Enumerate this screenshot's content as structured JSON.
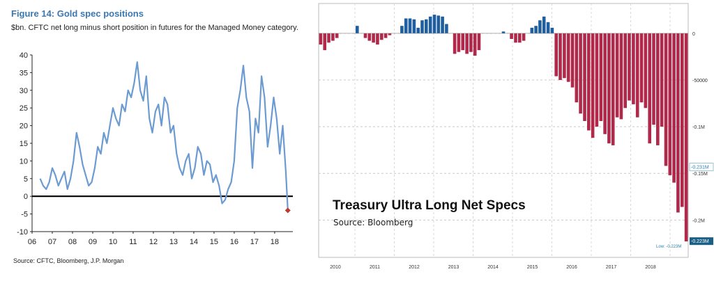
{
  "left_figure": {
    "title": "Figure 14: Gold spec positions",
    "subtitle": "$bn. CFTC net long minus short position in futures for the Managed Money category.",
    "source": "Source: CFTC, Bloomberg, J.P. Morgan"
  },
  "right_figure": {
    "title": "Treasury Ultra Long Net Specs",
    "source": "Source: Bloomberg"
  },
  "colors": {
    "line": "#6b9bd1",
    "line_end_marker": "#c0392b",
    "positive_bar": "#1f5fa0",
    "negative_bar": "#b0284a",
    "title_blue": "#3a78b4",
    "highlight_label": "#2a7fa8"
  },
  "chart_data": [
    {
      "type": "line",
      "ylim": [
        -10,
        40
      ],
      "yticks": [
        "-10",
        "-5",
        "0",
        "5",
        "10",
        "15",
        "20",
        "25",
        "30",
        "35",
        "40"
      ],
      "xlim": [
        2006,
        2018.9
      ],
      "xticks": [
        "06",
        "07",
        "08",
        "09",
        "10",
        "11",
        "12",
        "13",
        "14",
        "15",
        "16",
        "17",
        "18"
      ],
      "series": [
        {
          "x": [
            2006.4,
            2006.55,
            2006.7,
            2006.85,
            2007.0,
            2007.15,
            2007.3,
            2007.45,
            2007.6,
            2007.75,
            2007.9,
            2008.05,
            2008.2,
            2008.35,
            2008.5,
            2008.65,
            2008.8,
            2008.95,
            2009.1,
            2009.25,
            2009.4,
            2009.55,
            2009.7,
            2009.85,
            2010.0,
            2010.15,
            2010.3,
            2010.45,
            2010.6,
            2010.75,
            2010.9,
            2011.05,
            2011.2,
            2011.35,
            2011.5,
            2011.65,
            2011.8,
            2011.95,
            2012.1,
            2012.25,
            2012.4,
            2012.55,
            2012.7,
            2012.85,
            2013.0,
            2013.15,
            2013.3,
            2013.45,
            2013.6,
            2013.75,
            2013.9,
            2014.05,
            2014.2,
            2014.35,
            2014.5,
            2014.65,
            2014.8,
            2014.95,
            2015.1,
            2015.25,
            2015.4,
            2015.55,
            2015.7,
            2015.85,
            2016.0,
            2016.15,
            2016.3,
            2016.45,
            2016.6,
            2016.75,
            2016.9,
            2017.05,
            2017.2,
            2017.35,
            2017.5,
            2017.65,
            2017.8,
            2017.95,
            2018.1,
            2018.25,
            2018.4,
            2018.55,
            2018.65
          ],
          "y": [
            5,
            3,
            2,
            4,
            8,
            6,
            3,
            5,
            7,
            2,
            5,
            10,
            18,
            14,
            9,
            6,
            3,
            4,
            8,
            14,
            12,
            18,
            15,
            20,
            25,
            22,
            20,
            26,
            24,
            30,
            28,
            32,
            38,
            30,
            27,
            34,
            22,
            18,
            24,
            26,
            20,
            28,
            26,
            18,
            20,
            12,
            8,
            6,
            10,
            12,
            5,
            8,
            14,
            12,
            6,
            10,
            9,
            4,
            6,
            3,
            -2,
            -1,
            2,
            4,
            10,
            25,
            30,
            37,
            28,
            24,
            8,
            22,
            18,
            34,
            28,
            14,
            20,
            28,
            22,
            12,
            20,
            7,
            -4
          ]
        }
      ],
      "end_marker_value": -4
    },
    {
      "type": "bar",
      "yaxis_labels": [
        "0",
        "-50000",
        "-0.1M",
        "-0.15M",
        "-0.2M"
      ],
      "highlight_labels": [
        "-0.231M",
        "-0.223M"
      ],
      "low_label": "Low: -0.223M",
      "ylim": [
        -0.24,
        0.032
      ],
      "x_labels": [
        "2010",
        "2011",
        "2012",
        "2013",
        "2014",
        "2015",
        "2016",
        "2017",
        "2018"
      ],
      "values": [
        -0.012,
        -0.018,
        -0.01,
        -0.008,
        -0.005,
        0.0,
        0.0,
        0.0,
        0.0,
        0.008,
        0.0,
        -0.005,
        -0.008,
        -0.01,
        -0.012,
        -0.007,
        -0.005,
        -0.002,
        0.0,
        0.0,
        0.008,
        0.016,
        0.016,
        0.015,
        0.006,
        0.014,
        0.015,
        0.018,
        0.02,
        0.019,
        0.018,
        0.01,
        0.0,
        -0.022,
        -0.02,
        -0.018,
        -0.022,
        -0.02,
        -0.024,
        -0.018,
        0.0,
        0.0,
        0.0,
        0.0,
        0.0,
        0.002,
        0.0,
        -0.006,
        -0.01,
        -0.01,
        -0.008,
        0.0,
        0.006,
        0.008,
        0.014,
        0.018,
        0.012,
        0.006,
        -0.046,
        -0.05,
        -0.048,
        -0.052,
        -0.058,
        -0.074,
        -0.086,
        -0.094,
        -0.104,
        -0.112,
        -0.1,
        -0.094,
        -0.108,
        -0.118,
        -0.12,
        -0.09,
        -0.092,
        -0.08,
        -0.072,
        -0.076,
        -0.09,
        -0.074,
        -0.08,
        -0.118,
        -0.098,
        -0.12,
        -0.1,
        -0.142,
        -0.152,
        -0.16,
        -0.192,
        -0.186,
        -0.223
      ]
    }
  ]
}
